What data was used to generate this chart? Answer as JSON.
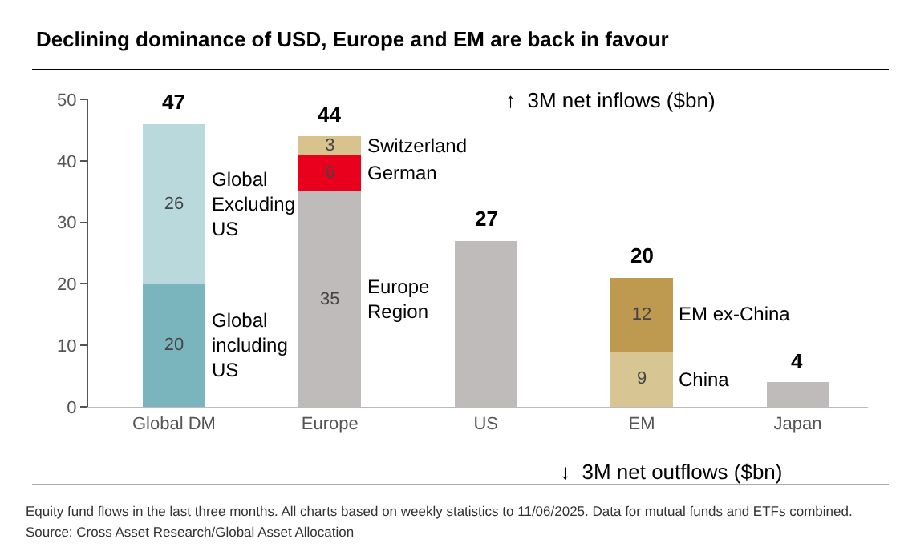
{
  "chart_data": {
    "type": "bar",
    "stacked": true,
    "title": "Declining dominance of USD, Europe and EM are back in favour",
    "categories": [
      "Global DM",
      "Europe",
      "US",
      "EM",
      "Japan"
    ],
    "series": [
      {
        "name": "Global\nincluding\nUS",
        "color": "#7ab5bd",
        "values": [
          20,
          null,
          null,
          null,
          null
        ],
        "value_labels": [
          "20",
          null,
          null,
          null,
          null
        ]
      },
      {
        "name": "Global\nExcluding\nUS",
        "color": "#b9d9dc",
        "values": [
          26,
          null,
          null,
          null,
          null
        ],
        "value_labels": [
          "26",
          null,
          null,
          null,
          null
        ]
      },
      {
        "name": "Europe\nRegion",
        "color": "#c0bbbb",
        "values": [
          null,
          35,
          null,
          null,
          null
        ],
        "value_labels": [
          null,
          "35",
          null,
          null,
          null
        ]
      },
      {
        "name": "German",
        "color": "#e8001c",
        "values": [
          null,
          6,
          null,
          null,
          null
        ],
        "value_labels": [
          null,
          "6",
          null,
          null,
          null
        ]
      },
      {
        "name": "Switzerland",
        "color": "#d8c28e",
        "values": [
          null,
          3,
          null,
          null,
          null
        ],
        "value_labels": [
          null,
          "3",
          null,
          null,
          null
        ]
      },
      {
        "color": "#c0bbbb",
        "values": [
          null,
          null,
          27,
          null,
          null
        ]
      },
      {
        "name": "China",
        "color": "#d8c594",
        "values": [
          null,
          null,
          null,
          9,
          null
        ],
        "value_labels": [
          null,
          null,
          null,
          "9",
          null
        ]
      },
      {
        "name": "EM ex-China",
        "color": "#bd9a50",
        "values": [
          null,
          null,
          null,
          12,
          null
        ],
        "value_labels": [
          null,
          null,
          null,
          "12",
          null
        ]
      },
      {
        "color": "#c0bbbb",
        "values": [
          null,
          null,
          null,
          null,
          4
        ]
      }
    ],
    "totals": [
      "47",
      "44",
      "27",
      "20",
      "4"
    ],
    "ylim": [
      0,
      50
    ],
    "yticks": [
      0,
      10,
      20,
      30,
      40,
      50
    ],
    "annotations": [
      "↑  3M net inflows ($bn)",
      "↓  3M net outflows ($bn)",
      "Equity fund flows in the last three months. All charts based on weekly statistics to 11/06/2025. Data for mutual funds and ETFs combined.",
      "Source: Cross Asset Research/Global Asset Allocation"
    ]
  }
}
